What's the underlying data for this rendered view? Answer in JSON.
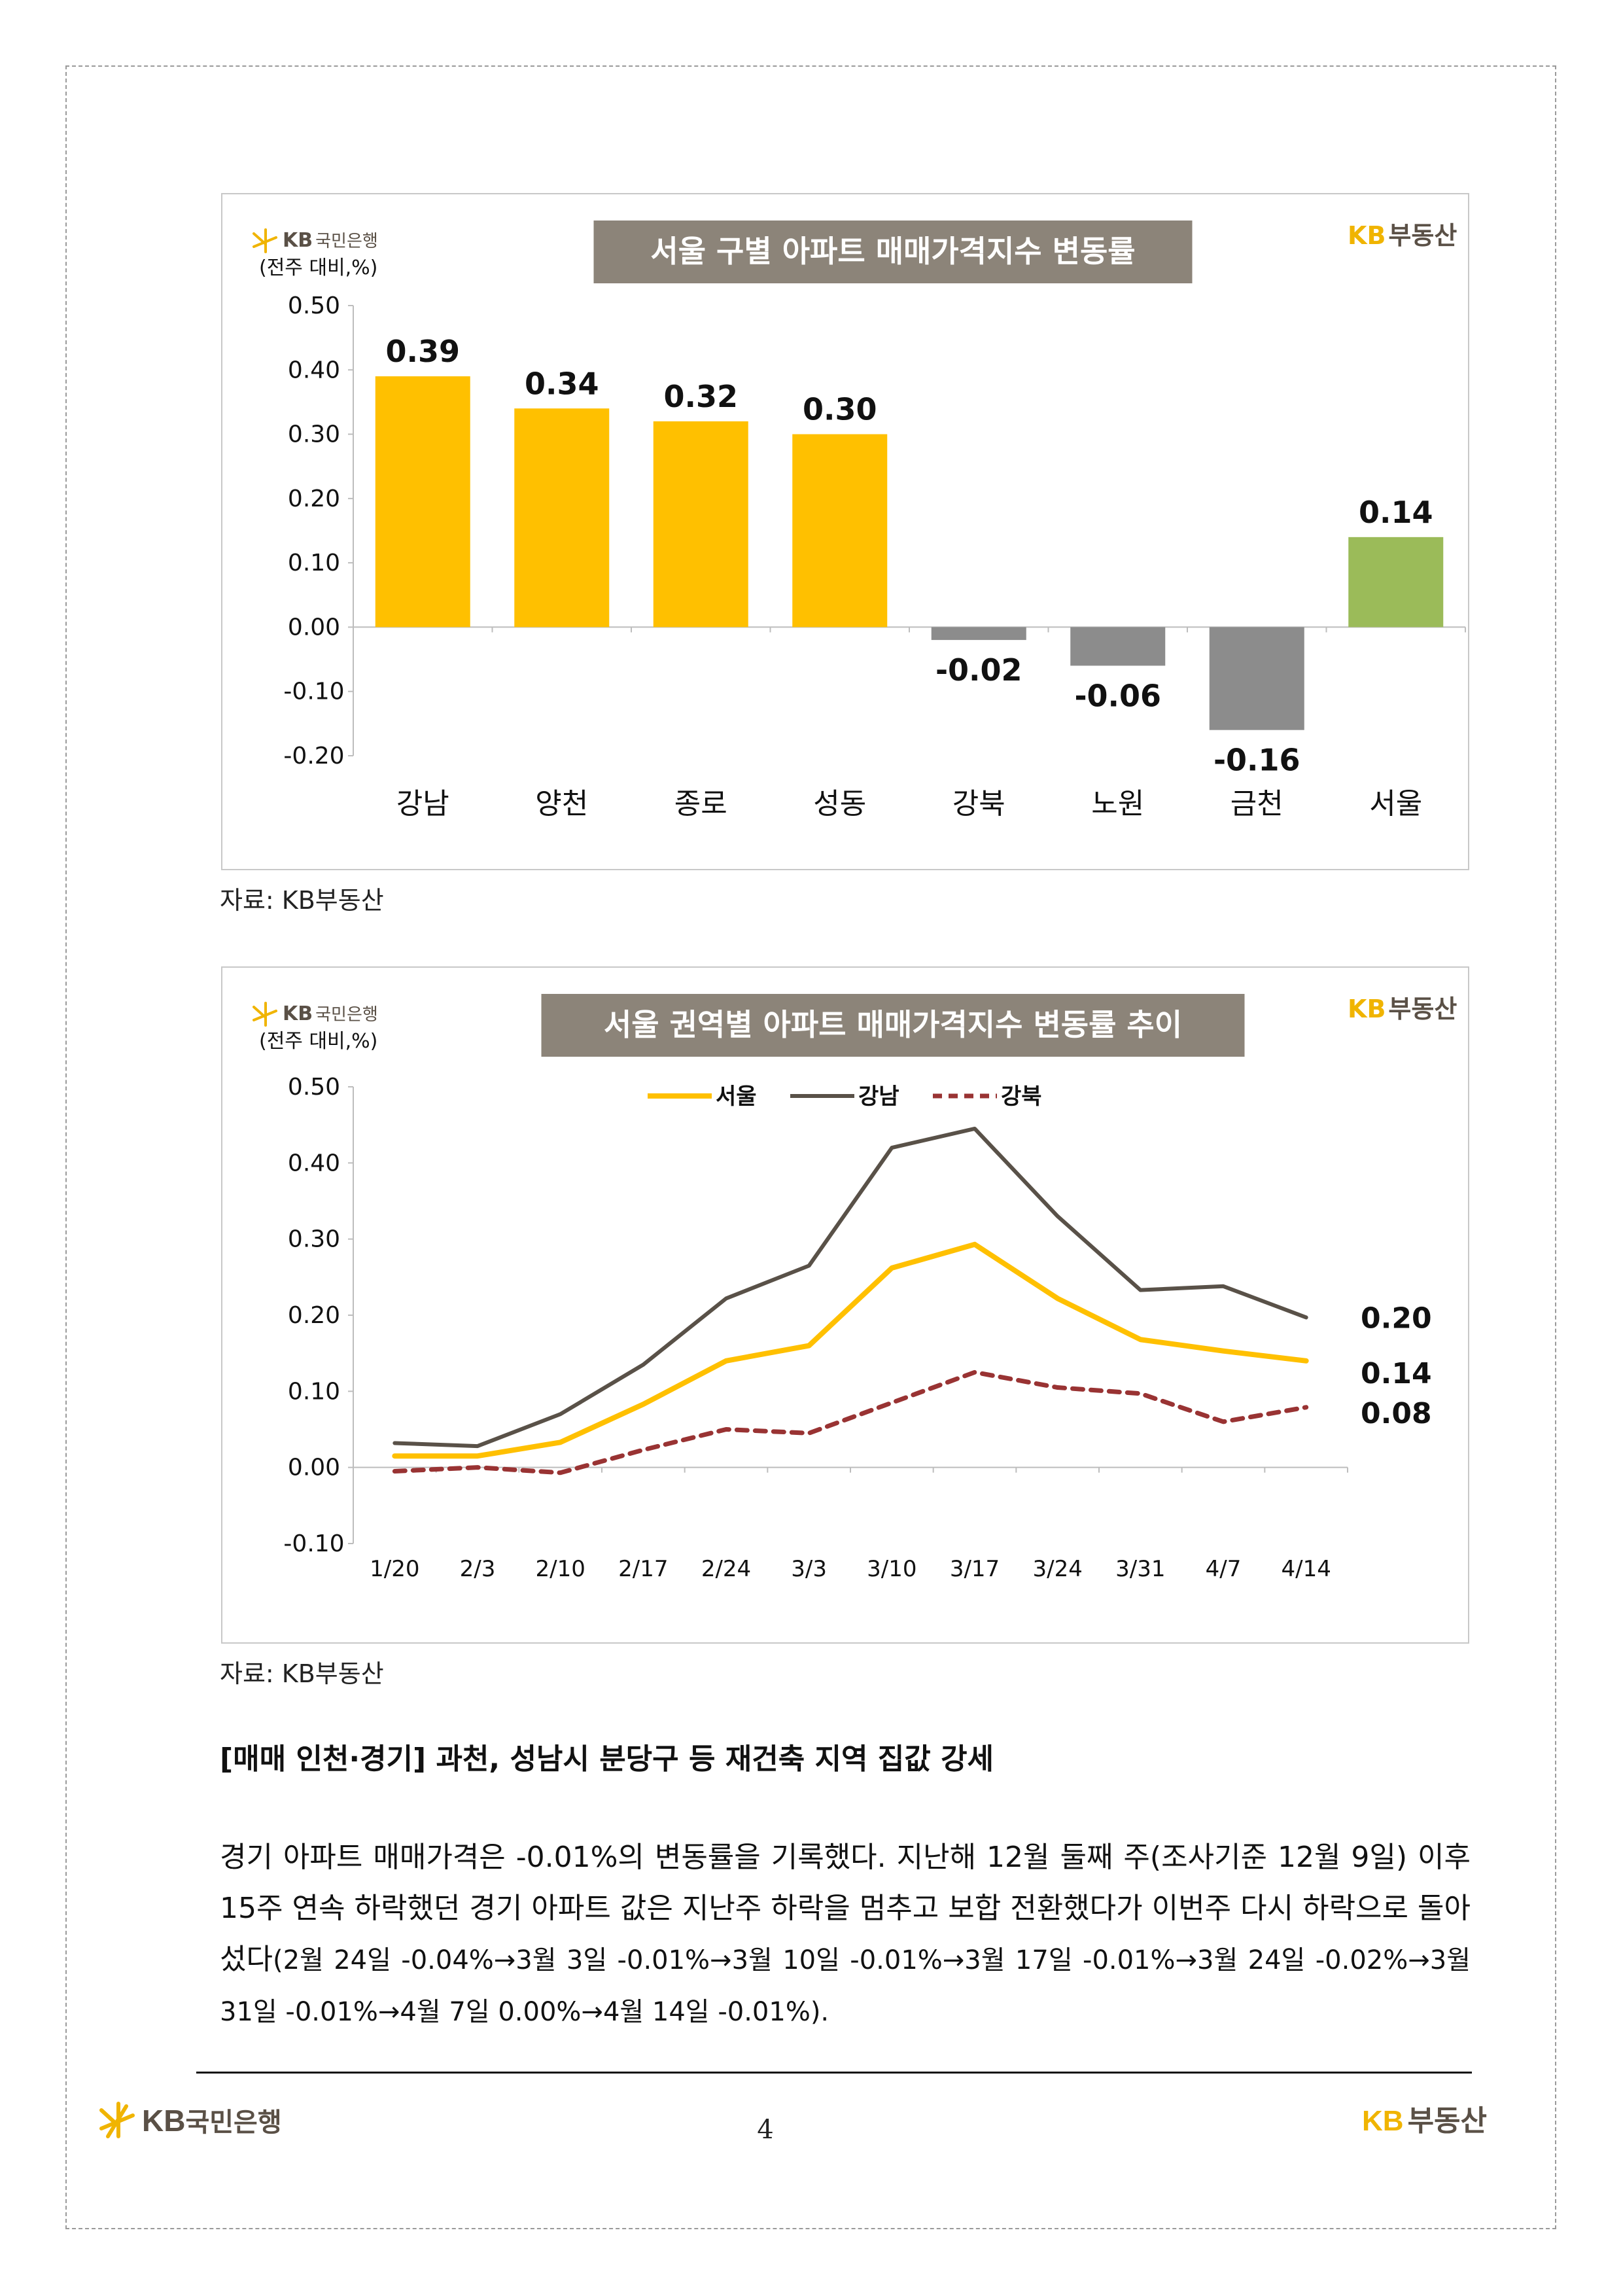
{
  "brand": {
    "bank_name": "KB국민은행",
    "realty_name": "KB부동산",
    "kb_letters": "KB",
    "realty_word": "부동산",
    "bank_word": "국민은행"
  },
  "colors": {
    "yellow": "#FFC000",
    "gray": "#8C8C8C",
    "green": "#9BBB59",
    "title_bg": "#8C8479",
    "strong_gray": "#595148",
    "dashed_red": "#993333",
    "brand_yellow": "#F0B400"
  },
  "chart_data": [
    {
      "type": "bar",
      "title": "서울 구별 아파트 매매가격지수 변동률",
      "unit_label": "(전주 대비,%)",
      "categories": [
        "강남",
        "양천",
        "종로",
        "성동",
        "강북",
        "노원",
        "금천",
        "서울"
      ],
      "values": [
        0.39,
        0.34,
        0.32,
        0.3,
        -0.02,
        -0.06,
        -0.16,
        0.14
      ],
      "value_labels": [
        "0.39",
        "0.34",
        "0.32",
        "0.30",
        "-0.02",
        "-0.06",
        "-0.16",
        "0.14"
      ],
      "bar_colors": [
        "yellow",
        "yellow",
        "yellow",
        "yellow",
        "gray",
        "gray",
        "gray",
        "green"
      ],
      "ylim": [
        -0.2,
        0.5
      ],
      "yticks": [
        0.5,
        0.4,
        0.3,
        0.2,
        0.1,
        0.0,
        -0.1,
        -0.2
      ],
      "ytick_labels": [
        "0.50",
        "0.40",
        "0.30",
        "0.20",
        "0.10",
        "0.00",
        "-0.10",
        "-0.20"
      ],
      "xlabel": "",
      "ylabel": ""
    },
    {
      "type": "line",
      "title": "서울 권역별 아파트 매매가격지수 변동률 추이",
      "unit_label": "(전주 대비,%)",
      "x": [
        "1/20",
        "2/3",
        "2/10",
        "2/17",
        "2/24",
        "3/3",
        "3/10",
        "3/17",
        "3/24",
        "3/31",
        "4/7",
        "4/14"
      ],
      "series": [
        {
          "name": "서울",
          "values": [
            0.015,
            0.015,
            0.033,
            0.083,
            0.14,
            0.16,
            0.262,
            0.293,
            0.222,
            0.168,
            0.153,
            0.14
          ],
          "end_label": "0.14",
          "style": "solid-yellow"
        },
        {
          "name": "강남",
          "values": [
            0.032,
            0.028,
            0.07,
            0.135,
            0.222,
            0.265,
            0.42,
            0.445,
            0.33,
            0.233,
            0.238,
            0.197
          ],
          "end_label": "0.20",
          "style": "solid-dark"
        },
        {
          "name": "강북",
          "values": [
            -0.005,
            0.0,
            -0.007,
            0.023,
            0.05,
            0.045,
            0.085,
            0.125,
            0.105,
            0.097,
            0.06,
            0.079
          ],
          "end_label": "0.08",
          "style": "dashed-red"
        }
      ],
      "ylim": [
        -0.1,
        0.5
      ],
      "yticks": [
        0.5,
        0.4,
        0.3,
        0.2,
        0.1,
        0.0,
        -0.1
      ],
      "ytick_labels": [
        "0.50",
        "0.40",
        "0.30",
        "0.20",
        "0.10",
        "0.00",
        "-0.10"
      ],
      "legend": "top-center",
      "xlabel": "",
      "ylabel": ""
    }
  ],
  "sources": {
    "chart1": "자료: KB부동산",
    "chart2": "자료: KB부동산"
  },
  "section": {
    "heading": "[매매 인천·경기] 과천, 성남시 분당구 등 재건축 지역 집값 강세",
    "body_main": "경기 아파트 매매가격은 -0.01%의 변동률을 기록했다. 지난해 12월 둘째 주(조사기준 12월 9일) 이후 15주 연속 하락했던 경기 아파트 값은 지난주 하락을 멈추고 보합 전환했다가 이번주 다시 하락으로 돌아섰다",
    "body_detail": "(2월 24일 -0.04%→3월 3일 -0.01%→3월 10일 -0.01%→3월 17일 -0.01%→3월 24일 -0.02%→3월 31일 -0.01%→4월 7일 0.00%→4월 14일 -0.01%)."
  },
  "footer": {
    "page_number": "4"
  }
}
